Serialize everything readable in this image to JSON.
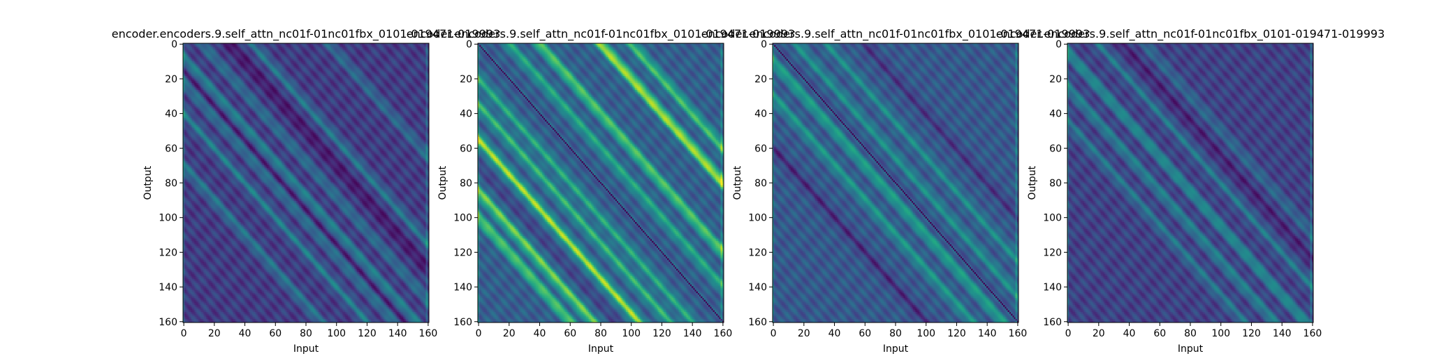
{
  "chart_data": [
    {
      "type": "heatmap",
      "title": "encoder.encoders.9.self_attn_nc01f-01nc01fbx_0101-019471-019993",
      "xlabel": "Input",
      "ylabel": "Output",
      "size": 161,
      "xlim": [
        0,
        160
      ],
      "ylim": [
        0,
        160
      ],
      "xticks": [
        0,
        20,
        40,
        60,
        80,
        100,
        120,
        140,
        160
      ],
      "yticks": [
        0,
        20,
        40,
        60,
        80,
        100,
        120,
        140,
        160
      ],
      "colormap": "viridis",
      "value_range": [
        0,
        1
      ],
      "structure": "diagonal bands (offset = input - output)",
      "base_level": 0.18,
      "bands": [
        {
          "offset": -8,
          "strength": 0.28
        },
        {
          "offset": -22,
          "strength": 0.22
        },
        {
          "offset": -40,
          "strength": 0.24
        },
        {
          "offset": -70,
          "strength": 0.22
        },
        {
          "offset": 12,
          "strength": 0.2
        },
        {
          "offset": 45,
          "strength": 0.22
        },
        {
          "offset": 95,
          "strength": 0.18
        },
        {
          "offset": 30,
          "strength": -0.12
        },
        {
          "offset": -15,
          "strength": -0.1
        }
      ],
      "main_diagonal_dark": false,
      "edge_columns_bright": [
        0,
        159
      ]
    },
    {
      "type": "heatmap",
      "title": "encoder.encoders.9.self_attn_nc01f-01nc01fbx_0101-019471-019993",
      "xlabel": "Input",
      "ylabel": "Output",
      "size": 161,
      "xlim": [
        0,
        160
      ],
      "ylim": [
        0,
        160
      ],
      "xticks": [
        0,
        20,
        40,
        60,
        80,
        100,
        120,
        140,
        160
      ],
      "yticks": [
        0,
        20,
        40,
        60,
        80,
        100,
        120,
        140,
        160
      ],
      "colormap": "viridis",
      "value_range": [
        0,
        1
      ],
      "structure": "diagonal bands (offset = input - output)",
      "base_level": 0.3,
      "bands": [
        {
          "offset": -55,
          "strength": 0.55
        },
        {
          "offset": -85,
          "strength": 0.5
        },
        {
          "offset": -100,
          "strength": 0.45
        },
        {
          "offset": -35,
          "strength": 0.35
        },
        {
          "offset": -20,
          "strength": 0.3
        },
        {
          "offset": 40,
          "strength": 0.45
        },
        {
          "offset": 80,
          "strength": 0.6
        },
        {
          "offset": 100,
          "strength": 0.4
        },
        {
          "offset": 20,
          "strength": 0.3
        },
        {
          "offset": -70,
          "strength": -0.1
        }
      ],
      "main_diagonal_dark": true,
      "edge_columns_bright": [
        0,
        159
      ]
    },
    {
      "type": "heatmap",
      "title": "encoder.encoders.9.self_attn_nc01f-01nc01fbx_0101-019471-019993",
      "xlabel": "Input",
      "ylabel": "Output",
      "size": 161,
      "xlim": [
        0,
        160
      ],
      "ylim": [
        0,
        160
      ],
      "xticks": [
        0,
        20,
        40,
        60,
        80,
        100,
        120,
        140,
        160
      ],
      "yticks": [
        0,
        20,
        40,
        60,
        80,
        100,
        120,
        140,
        160
      ],
      "colormap": "viridis",
      "value_range": [
        0,
        1
      ],
      "structure": "diagonal bands (offset = input - output)",
      "base_level": 0.28,
      "bands": [
        {
          "offset": -10,
          "strength": 0.3
        },
        {
          "offset": -30,
          "strength": 0.25
        },
        {
          "offset": 15,
          "strength": 0.22
        },
        {
          "offset": 35,
          "strength": 0.2
        },
        {
          "offset": -60,
          "strength": -0.15
        },
        {
          "offset": 60,
          "strength": -0.12
        }
      ],
      "main_diagonal_dark": true,
      "edge_columns_bright": [
        0,
        159
      ]
    },
    {
      "type": "heatmap",
      "title": "encoder.encoders.9.self_attn_nc01f-01nc01fbx_0101-019471-019993",
      "xlabel": "Input",
      "ylabel": "Output",
      "size": 161,
      "xlim": [
        0,
        160
      ],
      "ylim": [
        0,
        160
      ],
      "xticks": [
        0,
        20,
        40,
        60,
        80,
        100,
        120,
        140,
        160
      ],
      "yticks": [
        0,
        20,
        40,
        60,
        80,
        100,
        120,
        140,
        160
      ],
      "colormap": "viridis",
      "value_range": [
        0,
        1
      ],
      "structure": "diagonal bands (offset = input - output)",
      "base_level": 0.2,
      "bands": [
        {
          "offset": -5,
          "strength": 0.3
        },
        {
          "offset": -25,
          "strength": 0.25
        },
        {
          "offset": -45,
          "strength": 0.2
        },
        {
          "offset": 20,
          "strength": 0.2
        },
        {
          "offset": 50,
          "strength": 0.15
        },
        {
          "offset": 35,
          "strength": -0.1
        }
      ],
      "main_diagonal_dark": false,
      "edge_columns_bright": [
        0,
        159
      ]
    }
  ]
}
